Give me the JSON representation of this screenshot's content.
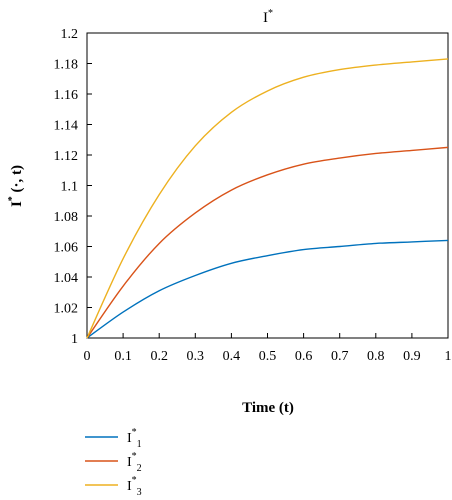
{
  "chart_data": {
    "type": "line",
    "title": "I",
    "title_sup": "*",
    "xlabel": "Time (t)",
    "ylabel": {
      "main": "I",
      "sup": "*",
      "rest": " (·, t)"
    },
    "xlim": [
      0,
      1
    ],
    "ylim": [
      1,
      1.2
    ],
    "xticks": [
      "0",
      "0.1",
      "0.2",
      "0.3",
      "0.4",
      "0.5",
      "0.6",
      "0.7",
      "0.8",
      "0.9",
      "1"
    ],
    "yticks": [
      "1",
      "1.02",
      "1.04",
      "1.06",
      "1.08",
      "1.1",
      "1.12",
      "1.14",
      "1.16",
      "1.18",
      "1.2"
    ],
    "grid": false,
    "legend_position": "bottom-left",
    "x": [
      0,
      0.1,
      0.2,
      0.3,
      0.4,
      0.5,
      0.6,
      0.7,
      0.8,
      0.9,
      1.0
    ],
    "series": [
      {
        "name": "I*1",
        "label": {
          "main": "I",
          "sup": "*",
          "sub": "1"
        },
        "color": "#0072BD",
        "values": [
          1.0,
          1.017,
          1.031,
          1.041,
          1.049,
          1.054,
          1.058,
          1.06,
          1.062,
          1.063,
          1.064
        ]
      },
      {
        "name": "I*2",
        "label": {
          "main": "I",
          "sup": "*",
          "sub": "2"
        },
        "color": "#D95319",
        "values": [
          1.0,
          1.034,
          1.062,
          1.082,
          1.097,
          1.107,
          1.114,
          1.118,
          1.121,
          1.123,
          1.125
        ]
      },
      {
        "name": "I*3",
        "label": {
          "main": "I",
          "sup": "*",
          "sub": "3"
        },
        "color": "#EDB120",
        "values": [
          1.0,
          1.052,
          1.094,
          1.126,
          1.148,
          1.162,
          1.171,
          1.176,
          1.179,
          1.181,
          1.183
        ]
      }
    ]
  }
}
